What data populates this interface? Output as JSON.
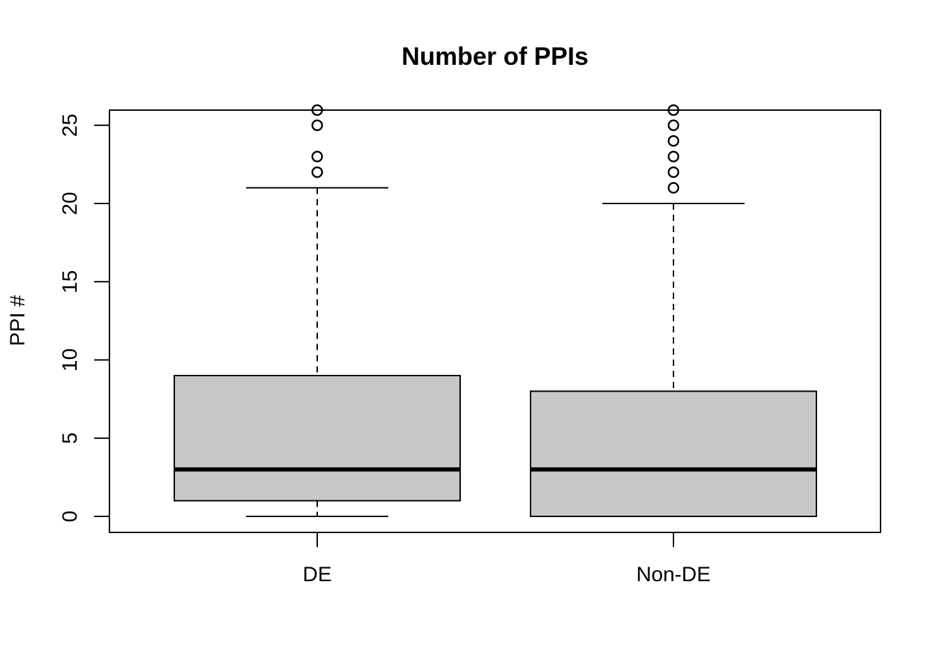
{
  "chart_data": {
    "type": "box",
    "title": "Number of PPIs",
    "xlabel": "",
    "ylabel": "PPI #",
    "ylim": [
      -1,
      26
    ],
    "yticks": [
      0,
      5,
      10,
      15,
      20,
      25
    ],
    "grid": false,
    "box_fill": "#c8c8c8",
    "stroke": "#000000",
    "categories": [
      "DE",
      "Non-DE"
    ],
    "boxes": [
      {
        "name": "DE",
        "whisker_low": 0,
        "q1": 1,
        "median": 3,
        "q3": 9,
        "whisker_high": 21,
        "outliers": [
          22,
          23,
          25,
          26
        ]
      },
      {
        "name": "Non-DE",
        "whisker_low": 0,
        "q1": 0,
        "median": 3,
        "q3": 8,
        "whisker_high": 20,
        "outliers": [
          21,
          22,
          23,
          24,
          25,
          26
        ]
      }
    ]
  }
}
